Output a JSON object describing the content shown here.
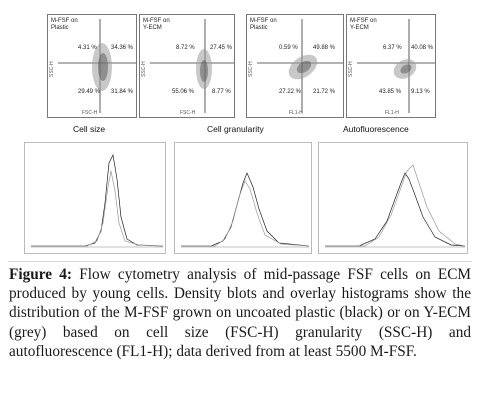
{
  "plots": [
    {
      "label": "M-FSF on\nPlastic",
      "q_ul": "4.31 %",
      "q_ur": "34.36 %",
      "q_ll": "29.49 %",
      "q_lr": "31.84 %",
      "xaxis": "FSC-H",
      "yaxis": "SSC-H"
    },
    {
      "label": "M-FSF on\nY-ECM",
      "q_ul": "8.72 %",
      "q_ur": "27.45 %",
      "q_ll": "55.06 %",
      "q_lr": "8.77 %",
      "xaxis": "FSC-H",
      "yaxis": "SSC-H"
    },
    {
      "label": "M-FSF on\nPlastic",
      "q_ul": "0.59 %",
      "q_ur": "49.88 %",
      "q_ll": "27.22 %",
      "q_lr": "21.72 %",
      "xaxis": "FL1-H",
      "yaxis": "SSC-H"
    },
    {
      "label": "M-FSF on\nY-ECM",
      "q_ul": "6.37 %",
      "q_ur": "40.08 %",
      "q_ll": "43.85 %",
      "q_lr": "9.13 %",
      "xaxis": "FL1-H",
      "yaxis": "SSC-H"
    }
  ],
  "sections": {
    "cell_size": "Cell size",
    "cell_granularity": "Cell granularity",
    "autofluorescence": "Autofluorescence"
  },
  "caption": {
    "label": "Figure 4:",
    "text": " Flow cytometry analysis of mid-passage FSF cells on ECM produced by young cells. Density blots and overlay histograms show the distribution of the M-FSF grown on uncoated plastic (black) or on Y-ECM (grey) based on cell size (FSC-H) granularity (SSC-H) and autofluorescence (FL1-H); data derived from at least 5500 M-FSF."
  }
}
